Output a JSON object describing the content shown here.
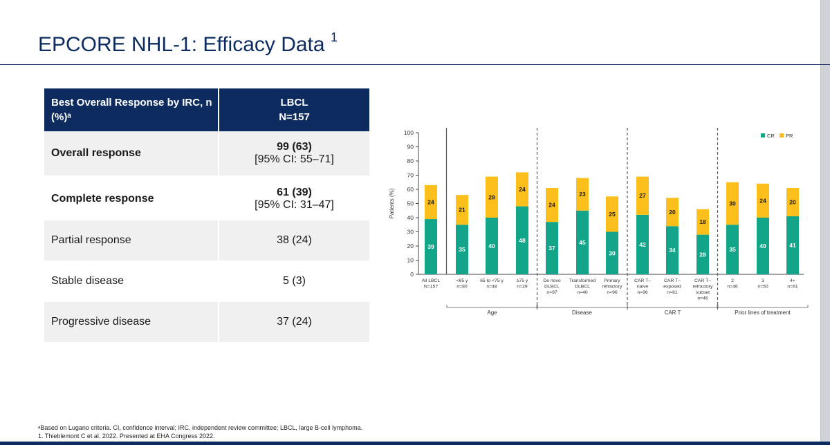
{
  "title": {
    "text": "EPCORE NHL-1: Efficacy Data",
    "sup": "1"
  },
  "table": {
    "header": {
      "left": "Best Overall Response by IRC, n (%)ᵃ",
      "right_line1": "LBCL",
      "right_line2": "N=157"
    },
    "rows": [
      {
        "label": "Overall response",
        "value": "99 (63)",
        "ci": "[95% CI: 55–71]"
      },
      {
        "label": "Complete response",
        "value": "61 (39)",
        "ci": "[95% CI: 31–47]"
      },
      {
        "label": "Partial response",
        "value": "38 (24)"
      },
      {
        "label": "Stable disease",
        "value": "5 (3)"
      },
      {
        "label": "Progressive disease",
        "value": "37 (24)"
      }
    ]
  },
  "colors": {
    "cr": "#12a589",
    "pr": "#fdbf1c",
    "navy": "#0d2b5e"
  },
  "chart_data": {
    "type": "bar",
    "stacked": true,
    "ylabel": "Patients (%)",
    "ylim": [
      0,
      100
    ],
    "yticks": [
      "0",
      "10",
      "20",
      "30",
      "40",
      "50",
      "60",
      "70",
      "80",
      "90",
      "100"
    ],
    "legend": [
      "CR",
      "PR"
    ],
    "legend_position": "top-right",
    "categories": [
      {
        "lines": [
          "All LBCL",
          "N=157"
        ]
      },
      {
        "lines": [
          "<65 y",
          "n=80"
        ]
      },
      {
        "lines": [
          "65 to <75 y",
          "n=48"
        ]
      },
      {
        "lines": [
          "≥75 y",
          "n=29"
        ]
      },
      {
        "lines": [
          "De novo",
          "DLBCL",
          "n=97"
        ]
      },
      {
        "lines": [
          "Transformed",
          "DLBCL",
          "n=40"
        ]
      },
      {
        "lines": [
          "Primary",
          "refractory",
          "n=96"
        ]
      },
      {
        "lines": [
          "CAR T–",
          "naive",
          "n=96"
        ]
      },
      {
        "lines": [
          "CAR T–",
          "exposed",
          "n=61"
        ]
      },
      {
        "lines": [
          "CAR T–",
          "refractory",
          "subset",
          "n=46"
        ]
      },
      {
        "lines": [
          "2",
          "n=46"
        ]
      },
      {
        "lines": [
          "3",
          "n=50"
        ]
      },
      {
        "lines": [
          "4+",
          "n=61"
        ]
      }
    ],
    "series": [
      {
        "name": "CR",
        "values": [
          39,
          35,
          40,
          48,
          37,
          45,
          30,
          42,
          34,
          28,
          35,
          40,
          41
        ]
      },
      {
        "name": "PR",
        "values": [
          24,
          21,
          29,
          24,
          24,
          23,
          25,
          27,
          20,
          18,
          30,
          24,
          20
        ]
      }
    ],
    "groups": [
      {
        "label": "Age",
        "from": 1,
        "to": 3
      },
      {
        "label": "Disease",
        "from": 4,
        "to": 6
      },
      {
        "label": "CAR T",
        "from": 7,
        "to": 9
      },
      {
        "label": "Prior lines of treatment",
        "from": 10,
        "to": 12
      }
    ]
  },
  "footnotes": {
    "line1": "ᵃBased on Lugano criteria. CI, confidence interval; IRC, independent review committee; LBCL, large B-cell lymphoma.",
    "line2": "1. Thieblemont C et al. 2022. Presented at EHA Congress 2022."
  }
}
